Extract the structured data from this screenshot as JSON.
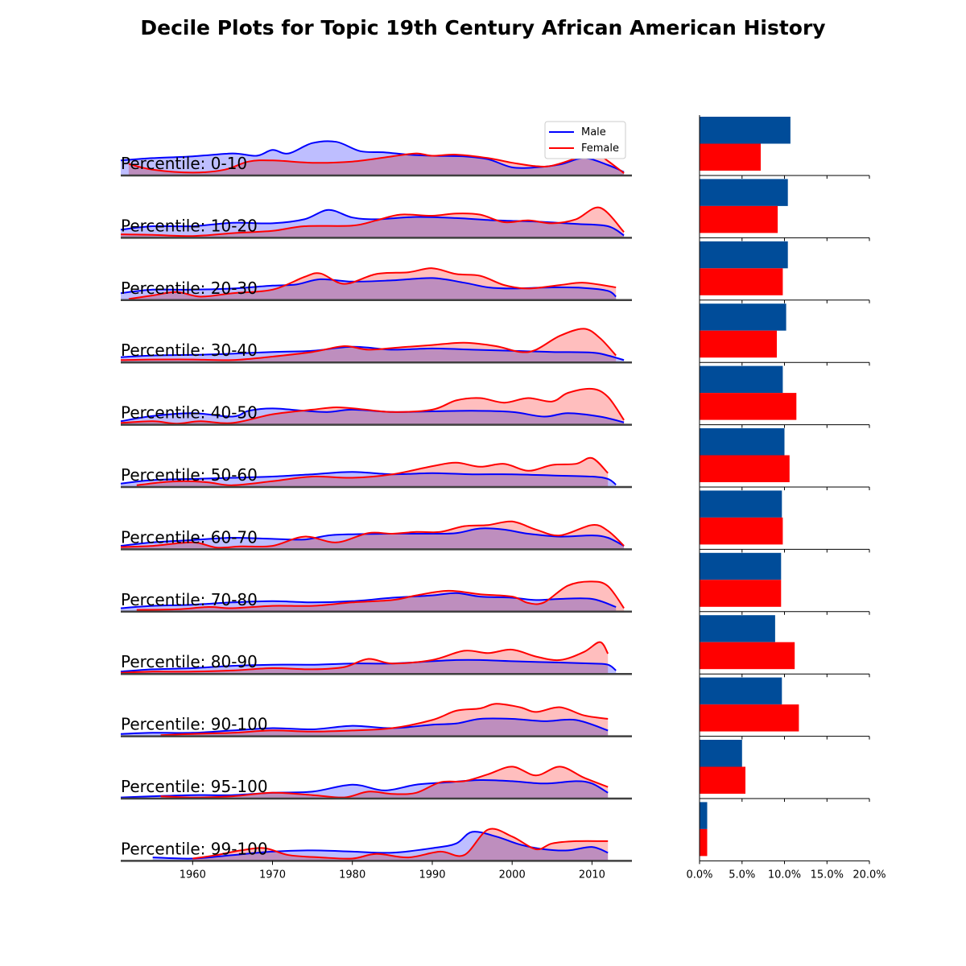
{
  "chart_data": {
    "type": "area",
    "title": "Decile Plots for Topic 19th Century African American History",
    "xlabel": "",
    "ylabel": "",
    "x_ticks": [
      1960,
      1970,
      1980,
      1990,
      2000,
      2010
    ],
    "xlim": [
      1951,
      2015
    ],
    "legend": {
      "placement": "top-right",
      "entries": [
        "Male",
        "Female"
      ]
    },
    "colors": {
      "male_line": "#0000ff",
      "male_fill": "#bbbbff",
      "female_line": "#ff0000",
      "female_fill": "#ffbbbb",
      "bar_male": "#004c99",
      "bar_female": "#ff0000"
    },
    "bar_axis": {
      "type": "bar",
      "orientation": "horizontal",
      "xlim": [
        0,
        20
      ],
      "ticks": [
        "0.0%",
        "5.0%",
        "10.0%",
        "15.0%",
        "20.0%"
      ]
    },
    "panels": [
      {
        "label": "Percentile: 0-10",
        "bar_male": 10.7,
        "bar_female": 7.2,
        "male": {
          "x": [
            1951,
            1955,
            1960,
            1965,
            1968,
            1970,
            1972,
            1975,
            1978,
            1981,
            1984,
            1987,
            1990,
            1994,
            1997,
            2000,
            2003,
            2006,
            2009,
            2012,
            2014
          ],
          "y": [
            0.26,
            0.3,
            0.33,
            0.38,
            0.34,
            0.44,
            0.38,
            0.56,
            0.58,
            0.42,
            0.4,
            0.36,
            0.34,
            0.33,
            0.28,
            0.14,
            0.14,
            0.19,
            0.3,
            0.18,
            0.06
          ]
        },
        "female": {
          "x": [
            1952,
            1955,
            1960,
            1964,
            1967,
            1970,
            1975,
            1980,
            1985,
            1988,
            1990,
            1993,
            1997,
            2000,
            2003,
            2005,
            2008,
            2010,
            2012,
            2014
          ],
          "y": [
            0.2,
            0.1,
            0.05,
            0.1,
            0.24,
            0.26,
            0.22,
            0.24,
            0.33,
            0.38,
            0.34,
            0.36,
            0.3,
            0.22,
            0.16,
            0.17,
            0.3,
            0.42,
            0.25,
            0.04
          ]
        }
      },
      {
        "label": "Percentile: 10-20",
        "bar_male": 10.4,
        "bar_female": 9.2,
        "male": {
          "x": [
            1951,
            1955,
            1960,
            1965,
            1970,
            1974,
            1977,
            1980,
            1983,
            1988,
            1993,
            1998,
            2003,
            2008,
            2012,
            2014
          ],
          "y": [
            0.14,
            0.2,
            0.2,
            0.26,
            0.25,
            0.32,
            0.48,
            0.35,
            0.32,
            0.36,
            0.34,
            0.3,
            0.28,
            0.24,
            0.2,
            0.04
          ]
        },
        "female": {
          "x": [
            1951,
            1955,
            1960,
            1965,
            1970,
            1974,
            1980,
            1983,
            1986,
            1990,
            1993,
            1996,
            1999,
            2002,
            2005,
            2008,
            2011,
            2014
          ],
          "y": [
            0.06,
            0.05,
            0.03,
            0.08,
            0.12,
            0.2,
            0.21,
            0.3,
            0.4,
            0.38,
            0.42,
            0.4,
            0.27,
            0.3,
            0.25,
            0.32,
            0.52,
            0.1
          ]
        }
      },
      {
        "label": "Percentile: 20-30",
        "bar_male": 10.4,
        "bar_female": 9.8,
        "male": {
          "x": [
            1951,
            1955,
            1960,
            1965,
            1970,
            1973,
            1976,
            1980,
            1985,
            1990,
            1994,
            1997,
            2000,
            2005,
            2009,
            2012,
            2013
          ],
          "y": [
            0.12,
            0.18,
            0.18,
            0.2,
            0.25,
            0.27,
            0.36,
            0.32,
            0.34,
            0.38,
            0.3,
            0.22,
            0.2,
            0.22,
            0.21,
            0.16,
            0.06
          ]
        },
        "female": {
          "x": [
            1952,
            1955,
            1958,
            1961,
            1965,
            1970,
            1974,
            1976,
            1979,
            1983,
            1987,
            1990,
            1993,
            1996,
            1999,
            2002,
            2006,
            2009,
            2013
          ],
          "y": [
            0.02,
            0.08,
            0.14,
            0.06,
            0.12,
            0.18,
            0.4,
            0.46,
            0.28,
            0.45,
            0.48,
            0.55,
            0.45,
            0.42,
            0.26,
            0.2,
            0.26,
            0.3,
            0.22
          ]
        }
      },
      {
        "label": "Percentile: 30-40",
        "bar_male": 10.2,
        "bar_female": 9.1,
        "male": {
          "x": [
            1951,
            1955,
            1960,
            1965,
            1970,
            1975,
            1980,
            1985,
            1990,
            1995,
            2000,
            2005,
            2010,
            2012,
            2014
          ],
          "y": [
            0.09,
            0.12,
            0.13,
            0.15,
            0.18,
            0.2,
            0.27,
            0.22,
            0.24,
            0.22,
            0.2,
            0.18,
            0.17,
            0.12,
            0.04
          ]
        },
        "female": {
          "x": [
            1951,
            1955,
            1960,
            1965,
            1970,
            1975,
            1979,
            1982,
            1986,
            1990,
            1994,
            1998,
            2001,
            2003,
            2006,
            2009,
            2011,
            2013
          ],
          "y": [
            0.04,
            0.05,
            0.05,
            0.04,
            0.1,
            0.18,
            0.28,
            0.22,
            0.26,
            0.3,
            0.34,
            0.28,
            0.18,
            0.22,
            0.46,
            0.58,
            0.42,
            0.12
          ]
        }
      },
      {
        "label": "Percentile: 40-50",
        "bar_male": 9.8,
        "bar_female": 11.4,
        "male": {
          "x": [
            1951,
            1955,
            1960,
            1965,
            1967,
            1970,
            1974,
            1977,
            1980,
            1985,
            1990,
            1995,
            2000,
            2004,
            2007,
            2011,
            2014
          ],
          "y": [
            0.06,
            0.15,
            0.2,
            0.14,
            0.24,
            0.28,
            0.24,
            0.22,
            0.26,
            0.22,
            0.23,
            0.24,
            0.22,
            0.14,
            0.2,
            0.14,
            0.04
          ]
        },
        "female": {
          "x": [
            1951,
            1955,
            1958,
            1961,
            1965,
            1970,
            1975,
            1978,
            1981,
            1985,
            1990,
            1993,
            1996,
            1999,
            2002,
            2005,
            2007,
            2010,
            2012,
            2014
          ],
          "y": [
            0.03,
            0.06,
            0.02,
            0.06,
            0.03,
            0.18,
            0.26,
            0.3,
            0.27,
            0.22,
            0.26,
            0.42,
            0.46,
            0.38,
            0.46,
            0.4,
            0.55,
            0.62,
            0.48,
            0.08
          ]
        }
      },
      {
        "label": "Percentile: 50-60",
        "bar_male": 10.0,
        "bar_female": 10.6,
        "male": {
          "x": [
            1951,
            1955,
            1960,
            1965,
            1970,
            1975,
            1980,
            1985,
            1990,
            1995,
            2000,
            2005,
            2010,
            2012,
            2013
          ],
          "y": [
            0.06,
            0.12,
            0.14,
            0.16,
            0.18,
            0.22,
            0.26,
            0.22,
            0.24,
            0.22,
            0.22,
            0.2,
            0.18,
            0.14,
            0.04
          ]
        },
        "female": {
          "x": [
            1953,
            1956,
            1959,
            1962,
            1965,
            1970,
            1975,
            1980,
            1985,
            1990,
            1993,
            1996,
            1999,
            2002,
            2005,
            2008,
            2010,
            2012
          ],
          "y": [
            0.03,
            0.08,
            0.1,
            0.08,
            0.03,
            0.1,
            0.18,
            0.16,
            0.22,
            0.36,
            0.42,
            0.35,
            0.4,
            0.28,
            0.38,
            0.4,
            0.5,
            0.24
          ]
        }
      },
      {
        "label": "Percentile: 60-70",
        "bar_male": 9.7,
        "bar_female": 9.8,
        "male": {
          "x": [
            1951,
            1955,
            1960,
            1965,
            1970,
            1974,
            1977,
            1980,
            1985,
            1990,
            1993,
            1996,
            1999,
            2002,
            2006,
            2010,
            2012,
            2014
          ],
          "y": [
            0.06,
            0.12,
            0.16,
            0.2,
            0.18,
            0.17,
            0.24,
            0.26,
            0.27,
            0.27,
            0.28,
            0.36,
            0.34,
            0.27,
            0.22,
            0.24,
            0.2,
            0.06
          ]
        },
        "female": {
          "x": [
            1951,
            1955,
            1960,
            1963,
            1966,
            1970,
            1974,
            1978,
            1982,
            1985,
            1988,
            1991,
            1994,
            1997,
            2000,
            2003,
            2006,
            2010,
            2012,
            2014
          ],
          "y": [
            0.04,
            0.06,
            0.12,
            0.03,
            0.05,
            0.06,
            0.22,
            0.12,
            0.28,
            0.27,
            0.3,
            0.3,
            0.4,
            0.42,
            0.48,
            0.34,
            0.24,
            0.42,
            0.32,
            0.06
          ]
        }
      },
      {
        "label": "Percentile: 70-80",
        "bar_male": 9.6,
        "bar_female": 9.6,
        "male": {
          "x": [
            1951,
            1955,
            1960,
            1965,
            1970,
            1975,
            1980,
            1985,
            1990,
            1993,
            1996,
            2000,
            2003,
            2006,
            2010,
            2013
          ],
          "y": [
            0.06,
            0.1,
            0.12,
            0.16,
            0.18,
            0.16,
            0.18,
            0.24,
            0.28,
            0.32,
            0.26,
            0.24,
            0.2,
            0.22,
            0.22,
            0.08
          ]
        },
        "female": {
          "x": [
            1953,
            1958,
            1962,
            1965,
            1970,
            1975,
            1980,
            1985,
            1988,
            1992,
            1996,
            2000,
            2002,
            2004,
            2007,
            2010,
            2012,
            2014
          ],
          "y": [
            0.03,
            0.04,
            0.08,
            0.06,
            0.1,
            0.1,
            0.16,
            0.2,
            0.28,
            0.36,
            0.3,
            0.26,
            0.15,
            0.16,
            0.45,
            0.52,
            0.44,
            0.06
          ]
        }
      },
      {
        "label": "Percentile: 80-90",
        "bar_male": 8.9,
        "bar_female": 11.2,
        "male": {
          "x": [
            1951,
            1955,
            1960,
            1965,
            1970,
            1975,
            1980,
            1985,
            1990,
            1993,
            1996,
            2000,
            2005,
            2010,
            2012,
            2013
          ],
          "y": [
            0.04,
            0.08,
            0.1,
            0.14,
            0.16,
            0.16,
            0.18,
            0.18,
            0.22,
            0.24,
            0.24,
            0.22,
            0.2,
            0.18,
            0.16,
            0.06
          ]
        },
        "female": {
          "x": [
            1951,
            1955,
            1960,
            1965,
            1970,
            1975,
            1979,
            1982,
            1985,
            1990,
            1994,
            1997,
            2000,
            2003,
            2006,
            2009,
            2011,
            2012
          ],
          "y": [
            0.02,
            0.04,
            0.04,
            0.06,
            0.1,
            0.08,
            0.12,
            0.26,
            0.18,
            0.24,
            0.4,
            0.36,
            0.42,
            0.3,
            0.24,
            0.38,
            0.55,
            0.35
          ]
        }
      },
      {
        "label": "Percentile: 90-100",
        "bar_male": 9.7,
        "bar_female": 11.7,
        "male": {
          "x": [
            1951,
            1955,
            1960,
            1965,
            1970,
            1975,
            1980,
            1985,
            1990,
            1993,
            1996,
            2000,
            2004,
            2008,
            2012
          ],
          "y": [
            0.04,
            0.06,
            0.06,
            0.1,
            0.14,
            0.12,
            0.18,
            0.14,
            0.2,
            0.22,
            0.3,
            0.3,
            0.26,
            0.28,
            0.1
          ]
        },
        "female": {
          "x": [
            1956,
            1960,
            1965,
            1970,
            1975,
            1980,
            1985,
            1990,
            1993,
            1996,
            1998,
            2001,
            2003,
            2006,
            2009,
            2012
          ],
          "y": [
            0.02,
            0.04,
            0.06,
            0.1,
            0.08,
            0.1,
            0.14,
            0.28,
            0.44,
            0.48,
            0.56,
            0.5,
            0.42,
            0.5,
            0.36,
            0.3
          ]
        }
      },
      {
        "label": "Percentile: 95-100",
        "bar_male": 5.0,
        "bar_female": 5.4,
        "male": {
          "x": [
            1951,
            1955,
            1960,
            1965,
            1970,
            1975,
            1980,
            1984,
            1988,
            1992,
            1996,
            2000,
            2004,
            2008,
            2010,
            2012
          ],
          "y": [
            0.02,
            0.04,
            0.06,
            0.06,
            0.1,
            0.12,
            0.24,
            0.14,
            0.24,
            0.28,
            0.32,
            0.3,
            0.26,
            0.3,
            0.26,
            0.1
          ]
        },
        "female": {
          "x": [
            1956,
            1960,
            1965,
            1970,
            1975,
            1979,
            1982,
            1985,
            1988,
            1991,
            1994,
            1997,
            2000,
            2003,
            2006,
            2009,
            2012
          ],
          "y": [
            0.04,
            0.02,
            0.04,
            0.1,
            0.06,
            0.02,
            0.12,
            0.08,
            0.1,
            0.28,
            0.3,
            0.42,
            0.55,
            0.4,
            0.55,
            0.36,
            0.2
          ]
        }
      },
      {
        "label": "Percentile: 99-100",
        "bar_male": 0.9,
        "bar_female": 0.9,
        "male": {
          "x": [
            1955,
            1960,
            1965,
            1970,
            1975,
            1980,
            1985,
            1990,
            1993,
            1995,
            1998,
            2001,
            2004,
            2007,
            2010,
            2012
          ],
          "y": [
            0.06,
            0.04,
            0.1,
            0.16,
            0.18,
            0.16,
            0.14,
            0.22,
            0.3,
            0.5,
            0.42,
            0.28,
            0.2,
            0.18,
            0.24,
            0.14
          ]
        },
        "female": {
          "x": [
            1960,
            1963,
            1966,
            1969,
            1972,
            1976,
            1980,
            1983,
            1987,
            1991,
            1994,
            1997,
            2000,
            2003,
            2005,
            2008,
            2012
          ],
          "y": [
            0.04,
            0.1,
            0.18,
            0.22,
            0.1,
            0.06,
            0.04,
            0.12,
            0.06,
            0.16,
            0.1,
            0.54,
            0.42,
            0.2,
            0.3,
            0.34,
            0.34
          ]
        }
      }
    ]
  }
}
